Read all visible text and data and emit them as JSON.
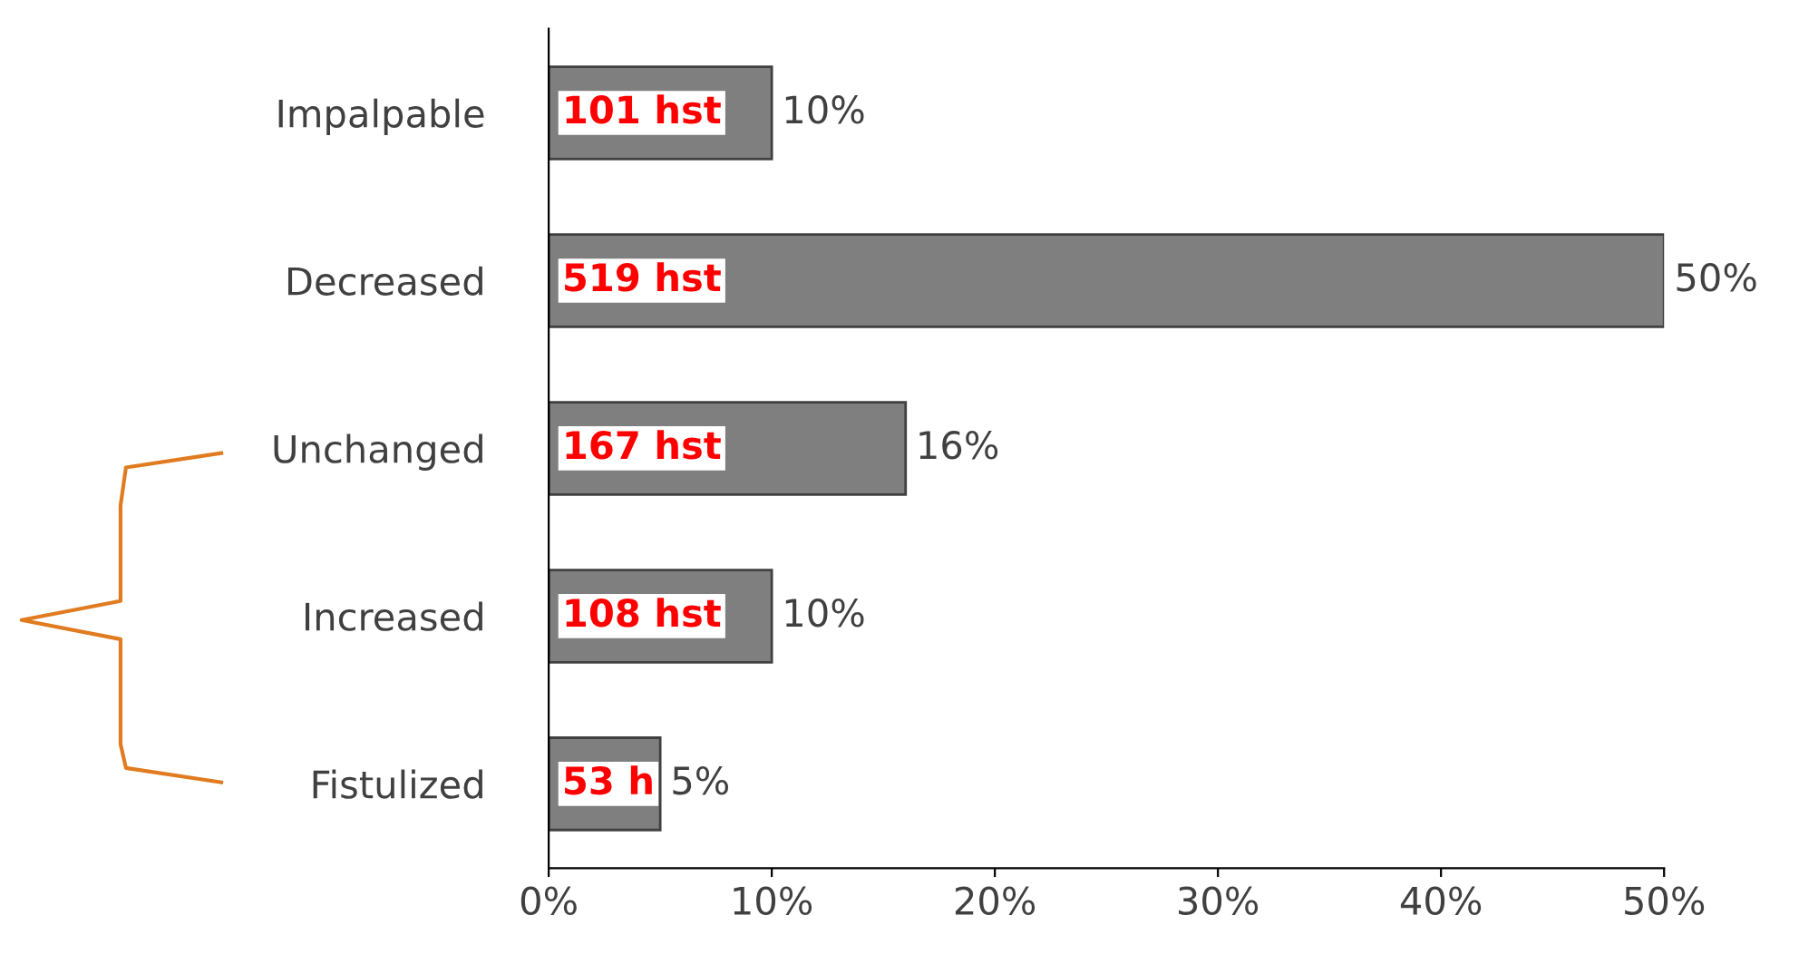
{
  "chart_data": {
    "type": "bar",
    "orientation": "horizontal",
    "categories": [
      "Impalpable",
      "Decreased",
      "Unchanged",
      "Increased",
      "Fistulized"
    ],
    "values": [
      10,
      50,
      16,
      10,
      5
    ],
    "value_labels": [
      "10%",
      "50%",
      "16%",
      "10%",
      "5%"
    ],
    "color": "#7f7f7f",
    "xlim": [
      0,
      50
    ],
    "xticks": [
      {
        "value": 0,
        "label": "0%"
      },
      {
        "value": 10,
        "label": "10%"
      },
      {
        "value": 20,
        "label": "20%"
      },
      {
        "value": 30,
        "label": "30%"
      },
      {
        "value": 40,
        "label": "40%"
      },
      {
        "value": 50,
        "label": "50%"
      }
    ],
    "annotations": [
      "101 hst",
      "519 hst",
      "167 hst",
      "108 hst",
      "53 h"
    ],
    "grid": false,
    "legend": false
  }
}
